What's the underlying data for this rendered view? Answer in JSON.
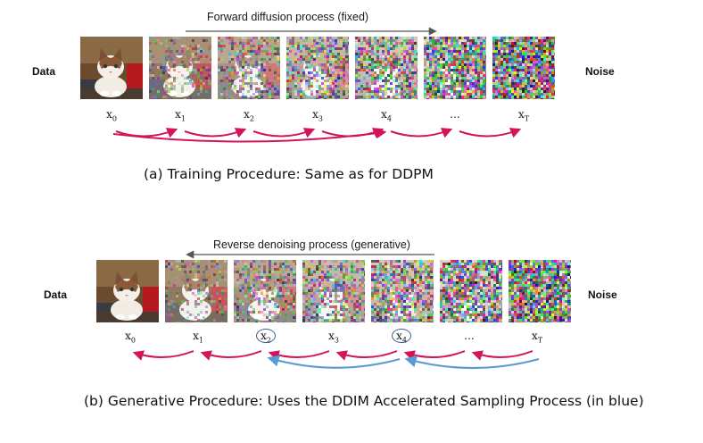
{
  "training": {
    "data_label": "Data",
    "noise_label": "Noise",
    "process_title": "Forward diffusion process (fixed)",
    "caption": "(a) Training Procedure: Same as for DDPM",
    "steps": [
      {
        "base": "x",
        "sub": "0"
      },
      {
        "base": "x",
        "sub": "1"
      },
      {
        "base": "x",
        "sub": "2"
      },
      {
        "base": "x",
        "sub": "3"
      },
      {
        "base": "x",
        "sub": "4"
      },
      {
        "base": "...",
        "sub": ""
      },
      {
        "base": "x",
        "sub": "T"
      }
    ],
    "noise_levels": [
      0,
      0.3,
      0.48,
      0.62,
      0.74,
      0.88,
      1.0
    ]
  },
  "generative": {
    "data_label": "Data",
    "noise_label": "Noise",
    "process_title": "Reverse denoising process (generative)",
    "caption": "(b) Generative Procedure: Uses the DDIM Accelerated Sampling Process (in blue)",
    "steps": [
      {
        "base": "x",
        "sub": "0",
        "circled": false
      },
      {
        "base": "x",
        "sub": "1",
        "circled": false
      },
      {
        "base": "x",
        "sub": "2",
        "circled": true
      },
      {
        "base": "x",
        "sub": "3",
        "circled": false
      },
      {
        "base": "x",
        "sub": "4",
        "circled": true
      },
      {
        "base": "...",
        "sub": "",
        "circled": false
      },
      {
        "base": "x",
        "sub": "T",
        "circled": false
      }
    ],
    "noise_levels": [
      0,
      0.3,
      0.48,
      0.62,
      0.74,
      0.88,
      1.0
    ]
  },
  "colors": {
    "ddpm_arrow": "#d3145a",
    "ddim_arrow": "#5b9bd5",
    "process_arrow": "#555555"
  }
}
